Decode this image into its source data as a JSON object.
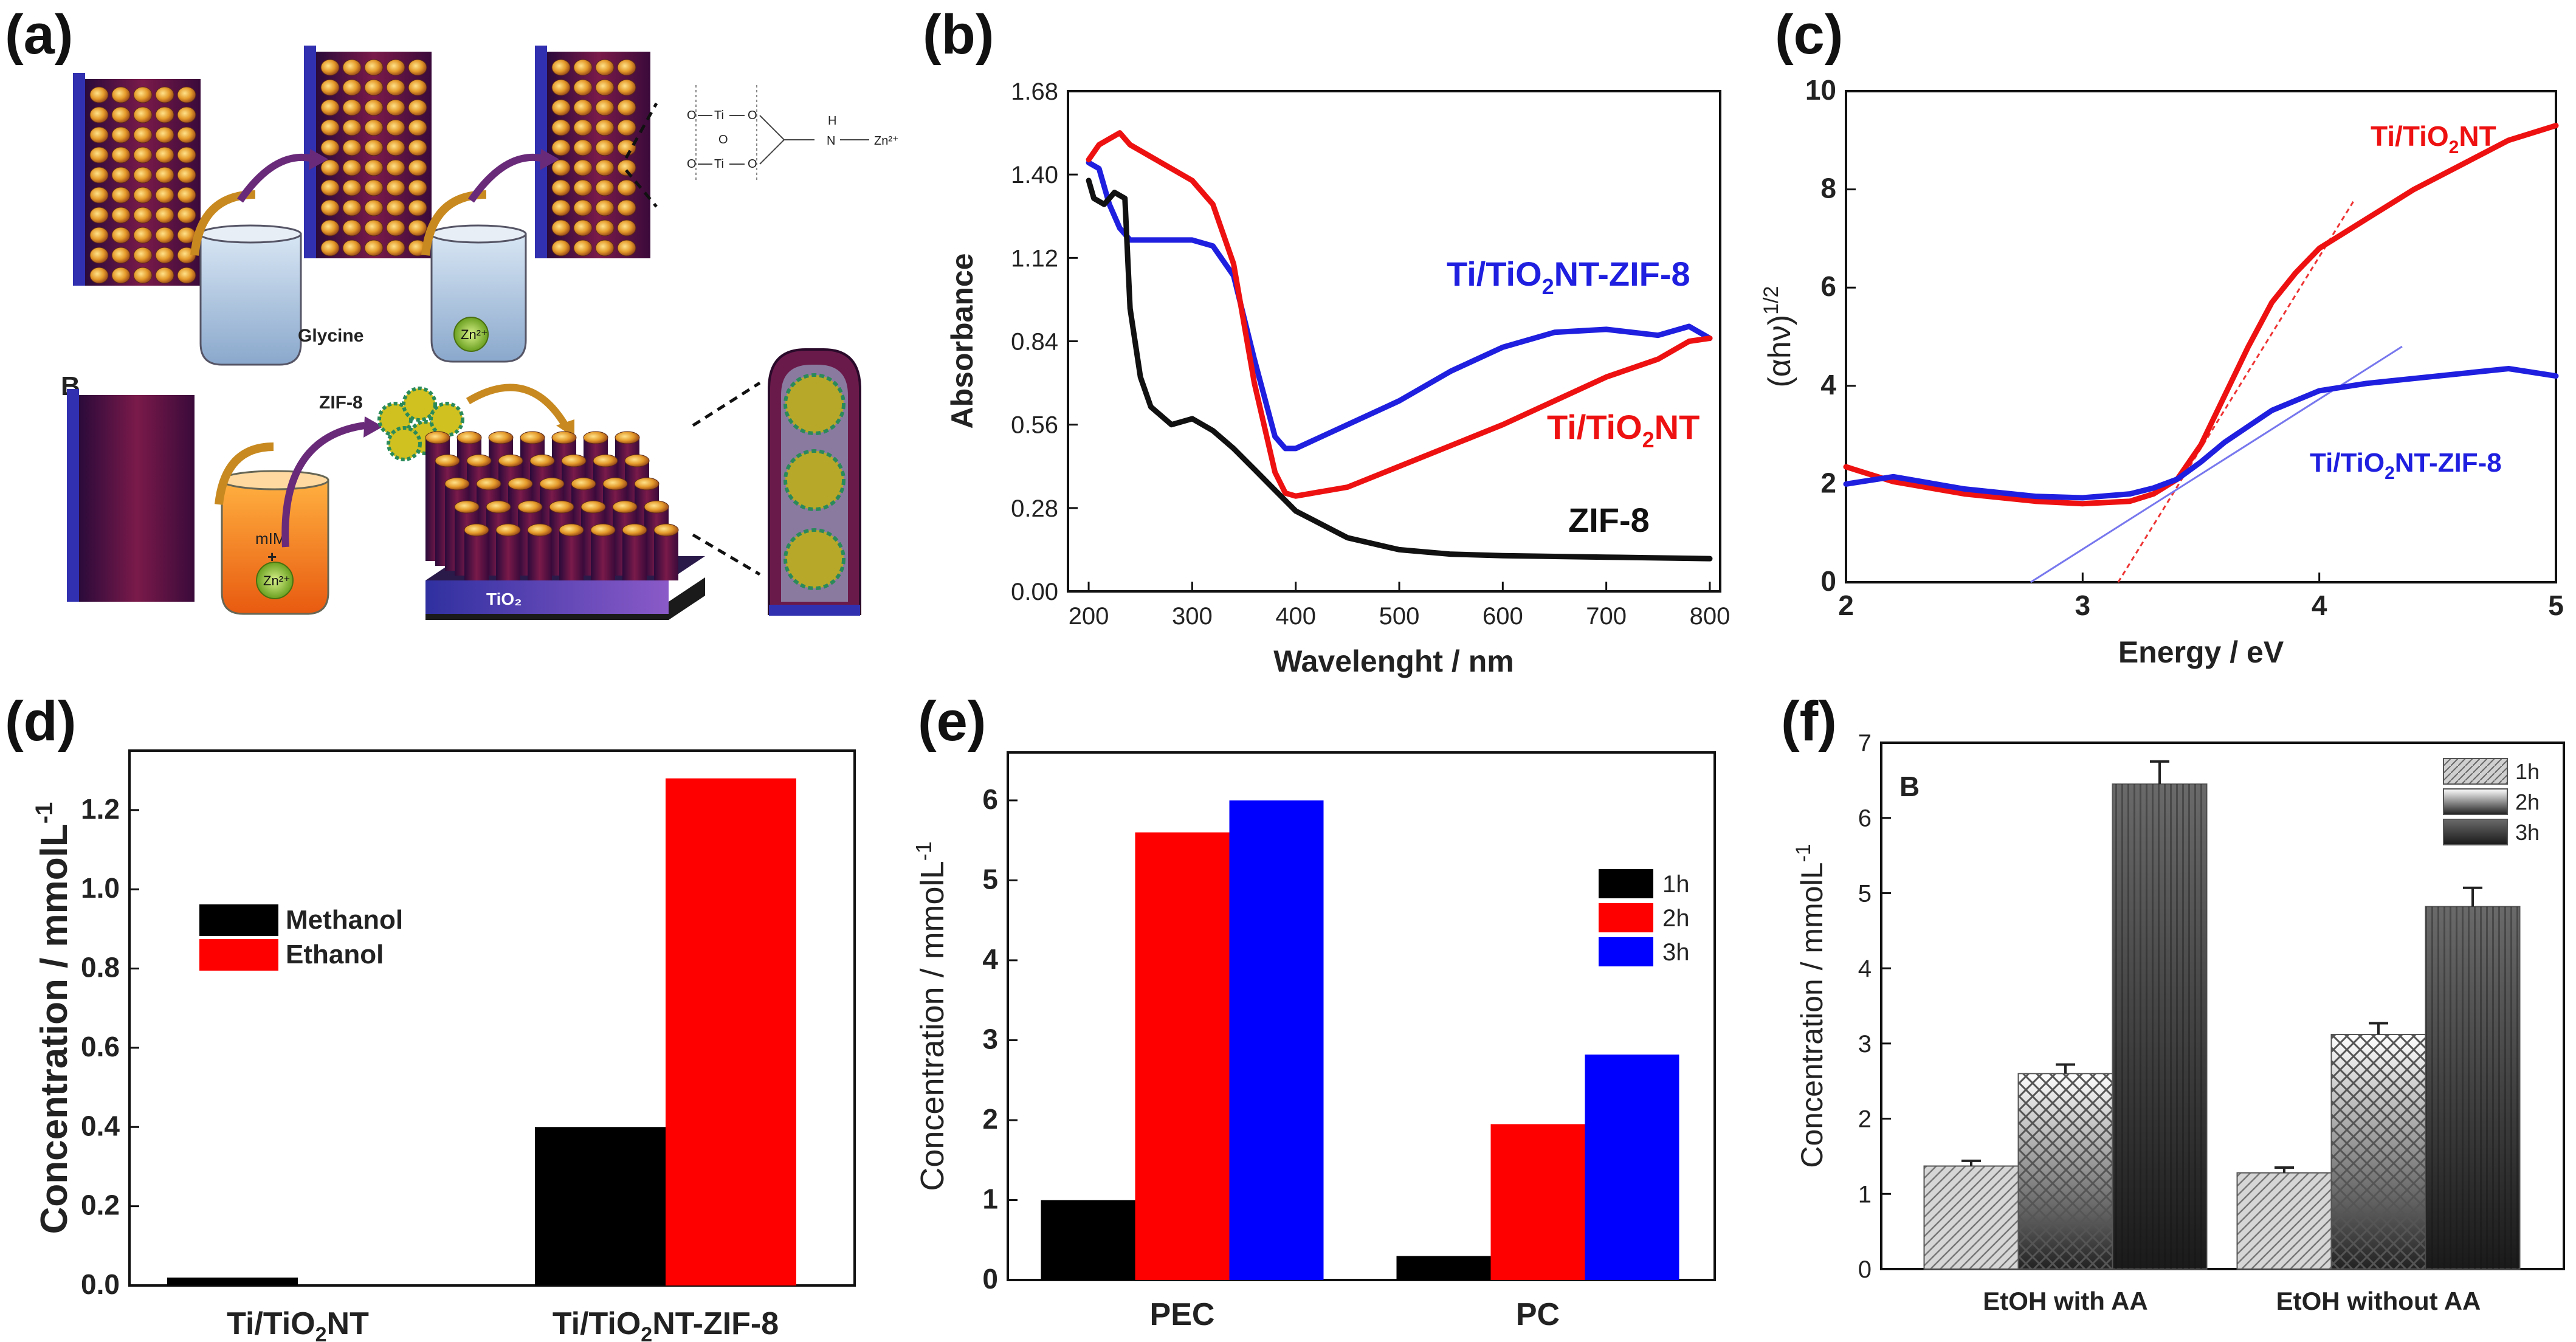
{
  "panel_labels": [
    "(a)",
    "(b)",
    "(c)",
    "(d)",
    "(e)",
    "(f)"
  ],
  "schematic": {
    "glycine_label": "Glycine",
    "zn_label": "Zn²⁺",
    "b_label": "B",
    "zif8_label": "ZIF-8",
    "mim_label": "mIM",
    "plus": "+",
    "tio2_label": "TiO₂",
    "struct_o": "O",
    "struct_ti": "Ti",
    "struct_h": "H",
    "struct_n": "N",
    "struct_zn": "Zn²⁺"
  },
  "chart_data": [
    {
      "id": "b",
      "type": "line",
      "xlabel": "Wavelenght / nm",
      "ylabel": "Absorbance",
      "xlim": [
        180,
        810
      ],
      "ylim": [
        0,
        1.68
      ],
      "xticks": [
        200,
        300,
        400,
        500,
        600,
        700,
        800
      ],
      "yticks": [
        "0.00",
        "0.28",
        "0.56",
        "0.84",
        "1.12",
        "1.40",
        "1.68"
      ],
      "series": [
        {
          "name": "Ti/TiO2NT-ZIF-8",
          "color": "#1f1fe0",
          "x": [
            200,
            210,
            220,
            230,
            240,
            260,
            300,
            320,
            340,
            360,
            380,
            390,
            400,
            450,
            500,
            550,
            600,
            650,
            700,
            750,
            780,
            800
          ],
          "y": [
            1.44,
            1.42,
            1.3,
            1.22,
            1.18,
            1.18,
            1.18,
            1.16,
            1.06,
            0.78,
            0.52,
            0.48,
            0.48,
            0.56,
            0.64,
            0.74,
            0.82,
            0.87,
            0.88,
            0.86,
            0.89,
            0.85
          ]
        },
        {
          "name": "Ti/TiO2NT",
          "color": "#ee1111",
          "x": [
            200,
            210,
            220,
            230,
            240,
            260,
            300,
            320,
            340,
            360,
            380,
            390,
            400,
            450,
            500,
            550,
            600,
            650,
            700,
            750,
            780,
            800
          ],
          "y": [
            1.45,
            1.5,
            1.52,
            1.54,
            1.5,
            1.46,
            1.38,
            1.3,
            1.1,
            0.7,
            0.4,
            0.33,
            0.32,
            0.35,
            0.42,
            0.49,
            0.56,
            0.64,
            0.72,
            0.78,
            0.84,
            0.85
          ]
        },
        {
          "name": "ZIF-8",
          "color": "#111111",
          "x": [
            200,
            205,
            215,
            225,
            235,
            240,
            250,
            260,
            280,
            300,
            320,
            340,
            360,
            380,
            400,
            450,
            500,
            550,
            600,
            700,
            800
          ],
          "y": [
            1.38,
            1.32,
            1.3,
            1.34,
            1.32,
            0.95,
            0.72,
            0.62,
            0.56,
            0.58,
            0.54,
            0.48,
            0.41,
            0.34,
            0.27,
            0.18,
            0.14,
            0.125,
            0.12,
            0.115,
            0.11
          ]
        }
      ],
      "labels": {
        "zif_comp": "Ti/TiO",
        "zif_sub": "2",
        "zif_rest": "NT-ZIF-8",
        "ti_comp": "Ti/TiO",
        "ti_sub": "2",
        "ti_rest": "NT",
        "zif": "ZIF-8"
      }
    },
    {
      "id": "c",
      "type": "line",
      "xlabel": "Energy / eV",
      "ylabel": "(αhν)",
      "ylabel_sup": "1/2",
      "xlim": [
        2,
        5
      ],
      "ylim": [
        0,
        10
      ],
      "xticks": [
        2,
        3,
        4,
        5
      ],
      "yticks": [
        0,
        2,
        4,
        6,
        8,
        10
      ],
      "series": [
        {
          "name": "Ti/TiO2NT",
          "color": "#ee1111",
          "x": [
            2.0,
            2.2,
            2.5,
            2.8,
            3.0,
            3.2,
            3.3,
            3.4,
            3.5,
            3.6,
            3.7,
            3.8,
            3.9,
            4.0,
            4.2,
            4.4,
            4.6,
            4.8,
            5.0
          ],
          "y": [
            2.35,
            2.05,
            1.8,
            1.65,
            1.6,
            1.65,
            1.8,
            2.1,
            2.8,
            3.8,
            4.8,
            5.7,
            6.3,
            6.8,
            7.4,
            8.0,
            8.5,
            9.0,
            9.3
          ]
        },
        {
          "name": "Ti/TiO2NT-ZIF-8",
          "color": "#1f1fe0",
          "x": [
            2.0,
            2.2,
            2.5,
            2.8,
            3.0,
            3.2,
            3.3,
            3.4,
            3.5,
            3.6,
            3.8,
            4.0,
            4.2,
            4.4,
            4.6,
            4.8,
            5.0
          ],
          "y": [
            2.0,
            2.15,
            1.9,
            1.75,
            1.72,
            1.8,
            1.92,
            2.1,
            2.45,
            2.85,
            3.5,
            3.9,
            4.05,
            4.15,
            4.25,
            4.35,
            4.2
          ]
        }
      ],
      "tangents": [
        {
          "color": "#ee3333",
          "x": [
            3.15,
            4.15
          ],
          "y": [
            0,
            7.8
          ]
        },
        {
          "color": "#7777ee",
          "x": [
            2.78,
            4.35
          ],
          "y": [
            0,
            4.8
          ]
        }
      ],
      "labels": {
        "ti_comp": "Ti/TiO",
        "ti_sub": "2",
        "ti_rest": "NT",
        "zif_comp": "Ti/TiO",
        "zif_sub": "2",
        "zif_rest": "NT-ZIF-8"
      }
    },
    {
      "id": "d",
      "type": "bar",
      "categories": [
        "Ti/TiO2NT",
        "Ti/TiO2NT-ZIF-8"
      ],
      "category_labels": [
        {
          "a": "Ti/TiO",
          "sub": "2",
          "b": "NT"
        },
        {
          "a": "Ti/TiO",
          "sub": "2",
          "b": "NT-ZIF-8"
        }
      ],
      "series": [
        {
          "name": "Methanol",
          "color": "#000000",
          "values": [
            0.02,
            0.4
          ]
        },
        {
          "name": "Ethanol",
          "color": "#ff0000",
          "values": [
            0.0,
            1.28
          ]
        }
      ],
      "ylabel": "Concentration / mmolL",
      "ylabel_sup": "-1",
      "ylim": [
        0,
        1.35
      ],
      "yticks": [
        "0.0",
        "0.2",
        "0.4",
        "0.6",
        "0.8",
        "1.0",
        "1.2"
      ]
    },
    {
      "id": "e",
      "type": "bar",
      "categories": [
        "PEC",
        "PC"
      ],
      "series": [
        {
          "name": "1h",
          "color": "#000000",
          "values": [
            1.0,
            0.3
          ]
        },
        {
          "name": "2h",
          "color": "#ff0000",
          "values": [
            5.6,
            1.95
          ]
        },
        {
          "name": "3h",
          "color": "#0000ff",
          "values": [
            6.0,
            2.82
          ]
        }
      ],
      "ylabel": "Concentration / mmolL",
      "ylabel_sup": "-1",
      "ylim": [
        0,
        6.6
      ],
      "yticks": [
        "0",
        "1",
        "2",
        "3",
        "4",
        "5",
        "6"
      ]
    },
    {
      "id": "f",
      "type": "bar",
      "inset_label": "B",
      "categories": [
        "EtOH with AA",
        "EtOH without AA"
      ],
      "series": [
        {
          "name": "1h",
          "values": [
            1.37,
            1.28
          ],
          "errors": [
            0.07,
            0.07
          ]
        },
        {
          "name": "2h",
          "values": [
            2.6,
            3.12
          ],
          "errors": [
            0.12,
            0.15
          ]
        },
        {
          "name": "3h",
          "values": [
            6.45,
            4.82
          ],
          "errors": [
            0.3,
            0.25
          ]
        }
      ],
      "ylabel": "Concentration / mmolL",
      "ylabel_sup": "-1",
      "ylim": [
        0,
        7
      ],
      "yticks": [
        "0",
        "1",
        "2",
        "3",
        "4",
        "5",
        "6",
        "7"
      ]
    }
  ]
}
